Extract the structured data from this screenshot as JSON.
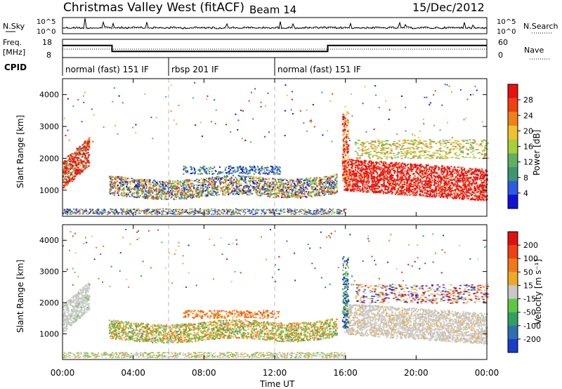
{
  "header": {
    "title": "Christmas Valley West (fitACF)",
    "beam": "Beam 14",
    "date": "15/Dec/2012"
  },
  "sky_panel": {
    "left_label": "N.Sky",
    "right_label": "N.Search",
    "y_ticks": [
      "10^5",
      "10^0"
    ],
    "right_ticks": [
      "10^5",
      "10^0"
    ]
  },
  "freq_panel": {
    "left_label_line1": "Freq.",
    "left_label_line2": "[MHz]",
    "right_label": "Nave",
    "y_ticks": [
      "18",
      "8"
    ],
    "right_ticks": [
      "60",
      "0"
    ]
  },
  "cpid": {
    "label": "CPID",
    "segments": [
      {
        "text": "normal (fast) 151 IF",
        "start_h": 0,
        "end_h": 6
      },
      {
        "text": "rbsp 201 IF",
        "start_h": 6,
        "end_h": 12
      },
      {
        "text": "normal (fast) 151 IF",
        "start_h": 12,
        "end_h": 24
      }
    ]
  },
  "x_axis": {
    "label": "Time UT",
    "ticks": [
      "00:00",
      "04:00",
      "08:00",
      "12:00",
      "16:00",
      "20:00",
      "00:00"
    ]
  },
  "panels": {
    "power": {
      "ylabel": "Slant Range [km]",
      "y_ticks": [
        "4000",
        "3000",
        "2000",
        "1000"
      ],
      "colorbar_label": "Power [dB]",
      "colorbar_ticks": [
        "28",
        "24",
        "20",
        "16",
        "12",
        "8",
        "4"
      ],
      "colors": [
        "#1010d8",
        "#2c5ae0",
        "#3d9670",
        "#60b060",
        "#a8d038",
        "#f0c030",
        "#f08018",
        "#f04010",
        "#e81010"
      ]
    },
    "velocity": {
      "ylabel": "Slant Range [km]",
      "y_ticks": [
        "4000",
        "3000",
        "2000",
        "1000"
      ],
      "colorbar_label": "Velocity [m s⁻¹]",
      "colorbar_ticks": [
        "200",
        "100",
        "50",
        "15",
        "-15",
        "-50",
        "-100",
        "-200"
      ],
      "colors": [
        "#1a3cc8",
        "#2c70b0",
        "#30a060",
        "#60c840",
        "#c8c8c8",
        "#f0a828",
        "#f07818",
        "#f04010",
        "#e01010"
      ]
    }
  },
  "chart_data": {
    "type": "heatmap",
    "x_range_hours": [
      0,
      24
    ],
    "y_range_km": [
      180,
      4500
    ],
    "freq_mhz": [
      {
        "start_h": 0,
        "end_h": 2.8,
        "value": 15
      },
      {
        "start_h": 2.8,
        "end_h": 15,
        "value": 10
      },
      {
        "start_h": 15,
        "end_h": 24,
        "value": 15
      }
    ],
    "scatter_regions": [
      {
        "name": "morning-echo",
        "t0": 0,
        "t1": 1.5,
        "r0": 1200,
        "r1": 2600
      },
      {
        "name": "band-1000km",
        "t0": 2.6,
        "t1": 15.5,
        "r0": 800,
        "r1": 1500
      },
      {
        "name": "post-16h-echo",
        "t0": 15.9,
        "t1": 24,
        "r0": 1000,
        "r1": 2000
      }
    ]
  }
}
